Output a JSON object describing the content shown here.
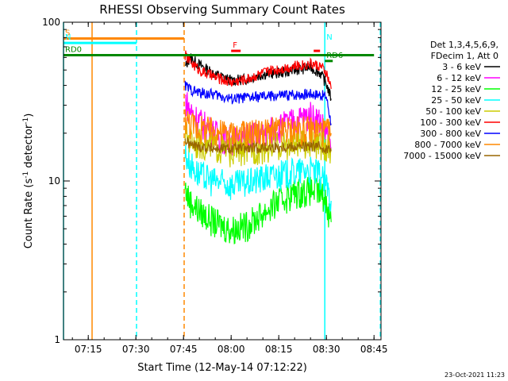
{
  "chart_data": {
    "type": "line",
    "title": "RHESSI Observing Summary Count Rates",
    "xlabel": "Start Time (12-May-14 07:12:22)",
    "ylabel": "Count Rate (s⁻¹ detector⁻¹)",
    "ylog": true,
    "ylim": [
      1,
      100
    ],
    "xlim_minutes": [
      7.2,
      89.2
    ],
    "x_ticks": [
      {
        "label": "07:15",
        "minute": 15
      },
      {
        "label": "07:30",
        "minute": 30
      },
      {
        "label": "07:45",
        "minute": 45
      },
      {
        "label": "08:00",
        "minute": 60
      },
      {
        "label": "08:15",
        "minute": 75
      },
      {
        "label": "08:30",
        "minute": 90
      },
      {
        "label": "08:45",
        "minute": 105
      }
    ],
    "y_ticks": [
      {
        "label": "1",
        "value": 1
      },
      {
        "label": "10",
        "value": 10
      },
      {
        "label": "100",
        "value": 100
      }
    ],
    "legend_header": [
      "Det 1,3,4,5,6,9,",
      "FDecim 1, Att 0"
    ],
    "legend_position": "right",
    "series": [
      {
        "name": "3 - 6 keV",
        "color": "#000000",
        "values": [
          [
            45.5,
            52
          ],
          [
            47,
            60
          ],
          [
            50,
            54
          ],
          [
            55,
            47
          ],
          [
            60,
            43
          ],
          [
            65,
            44
          ],
          [
            70,
            47
          ],
          [
            75,
            48
          ],
          [
            80,
            50
          ],
          [
            85,
            52
          ],
          [
            88,
            48
          ],
          [
            90,
            41
          ],
          [
            91.5,
            33
          ]
        ]
      },
      {
        "name": "6 - 12 keV",
        "color": "#ff00ff",
        "values": [
          [
            45.5,
            33
          ],
          [
            47,
            28
          ],
          [
            50,
            24
          ],
          [
            55,
            20
          ],
          [
            60,
            18
          ],
          [
            65,
            19
          ],
          [
            70,
            20
          ],
          [
            75,
            22
          ],
          [
            80,
            24
          ],
          [
            85,
            26
          ],
          [
            88,
            24
          ],
          [
            90,
            20
          ],
          [
            91.5,
            16
          ]
        ]
      },
      {
        "name": "12 - 25 keV",
        "color": "#00ff00",
        "values": [
          [
            45.5,
            9
          ],
          [
            47,
            7.5
          ],
          [
            50,
            6.5
          ],
          [
            55,
            5.5
          ],
          [
            60,
            5.0
          ],
          [
            65,
            5.3
          ],
          [
            70,
            6.3
          ],
          [
            75,
            7.5
          ],
          [
            80,
            8.5
          ],
          [
            85,
            8.8
          ],
          [
            88,
            8.5
          ],
          [
            90,
            7.5
          ],
          [
            91.5,
            5.5
          ]
        ]
      },
      {
        "name": "25 - 50 keV",
        "color": "#00ffff",
        "values": [
          [
            45.5,
            15
          ],
          [
            47,
            13
          ],
          [
            50,
            11
          ],
          [
            55,
            10
          ],
          [
            60,
            9.5
          ],
          [
            65,
            9.8
          ],
          [
            70,
            10.5
          ],
          [
            75,
            11
          ],
          [
            80,
            11.5
          ],
          [
            85,
            11.8
          ],
          [
            88,
            11
          ],
          [
            90,
            9.5
          ],
          [
            91.5,
            7.5
          ]
        ]
      },
      {
        "name": "50 - 100 keV",
        "color": "#cccc00",
        "values": [
          [
            45.5,
            20
          ],
          [
            47,
            18.5
          ],
          [
            50,
            17.5
          ],
          [
            55,
            16.5
          ],
          [
            60,
            15.5
          ],
          [
            65,
            15.8
          ],
          [
            70,
            16.3
          ],
          [
            75,
            16.8
          ],
          [
            80,
            17.2
          ],
          [
            85,
            17.5
          ],
          [
            88,
            17.2
          ],
          [
            90,
            16.5
          ],
          [
            91.5,
            15.5
          ]
        ]
      },
      {
        "name": "100 - 300 keV",
        "color": "#ff0000",
        "values": [
          [
            45.5,
            62
          ],
          [
            47,
            57
          ],
          [
            50,
            50
          ],
          [
            55,
            45
          ],
          [
            60,
            42
          ],
          [
            65,
            44
          ],
          [
            70,
            48
          ],
          [
            75,
            51
          ],
          [
            80,
            53
          ],
          [
            85,
            55
          ],
          [
            88,
            53
          ],
          [
            90,
            48
          ],
          [
            91.5,
            38
          ]
        ]
      },
      {
        "name": "300 - 800 keV",
        "color": "#0000ff",
        "values": [
          [
            45.5,
            40
          ],
          [
            47,
            38
          ],
          [
            50,
            36
          ],
          [
            55,
            35
          ],
          [
            60,
            33
          ],
          [
            65,
            33.5
          ],
          [
            70,
            34
          ],
          [
            75,
            34.5
          ],
          [
            80,
            35
          ],
          [
            85,
            35.5
          ],
          [
            88,
            35
          ],
          [
            90,
            34
          ],
          [
            91.5,
            23
          ]
        ]
      },
      {
        "name": "800 - 7000 keV",
        "color": "#ff8800",
        "values": [
          [
            45.5,
            25
          ],
          [
            47,
            23
          ],
          [
            50,
            21.5
          ],
          [
            55,
            20.5
          ],
          [
            60,
            20
          ],
          [
            65,
            20
          ],
          [
            70,
            20.5
          ],
          [
            75,
            20.8
          ],
          [
            80,
            21
          ],
          [
            85,
            21
          ],
          [
            88,
            21
          ],
          [
            90,
            20.5
          ],
          [
            91.5,
            20
          ]
        ]
      },
      {
        "name": "7000 - 15000 keV",
        "color": "#996600",
        "values": [
          [
            45.5,
            18
          ],
          [
            47,
            17
          ],
          [
            50,
            16.5
          ],
          [
            55,
            16
          ],
          [
            60,
            16
          ],
          [
            65,
            16
          ],
          [
            70,
            16.2
          ],
          [
            75,
            16.4
          ],
          [
            80,
            16.5
          ],
          [
            85,
            16.5
          ],
          [
            88,
            16.5
          ],
          [
            90,
            16
          ],
          [
            91.5,
            15.5
          ]
        ]
      }
    ],
    "flags": [
      {
        "label": "S",
        "color": "#ff8800",
        "x_start": 7.2,
        "x_end": 45.2,
        "y": 79
      },
      {
        "label": "N",
        "color": "#00ffff",
        "x_start": 7.2,
        "x_end": 30.2,
        "y": 74
      },
      {
        "label": "N",
        "color": "#00ffff",
        "x_start": 89.5,
        "x_end": 89.2,
        "y": 74
      },
      {
        "label": "F",
        "color": "#ff0000",
        "x_start": 60,
        "x_end": 63,
        "y": 66
      },
      {
        "label": "",
        "color": "#ff0000",
        "x_start": 86,
        "x_end": 88,
        "y": 66
      },
      {
        "label": "RD0",
        "color": "#008800",
        "x_start": 7.2,
        "x_end": 105,
        "y": 62
      },
      {
        "label": "RD6",
        "color": "#008800",
        "x_start": 89.5,
        "x_end": 92,
        "y": 57
      }
    ],
    "vlines": [
      {
        "minute": 7.2,
        "color": "#00ffff",
        "style": "solid"
      },
      {
        "minute": 16.2,
        "color": "#ff8800",
        "style": "solid"
      },
      {
        "minute": 30.2,
        "color": "#00ffff",
        "style": "dashed"
      },
      {
        "minute": 45.2,
        "color": "#ff8800",
        "style": "dashed"
      },
      {
        "minute": 89.5,
        "color": "#00ffff",
        "style": "solid"
      },
      {
        "minute": 107,
        "color": "#00ffff",
        "style": "dashed"
      }
    ],
    "grid": false
  },
  "footer_date": "23-Oct-2021 11:23"
}
